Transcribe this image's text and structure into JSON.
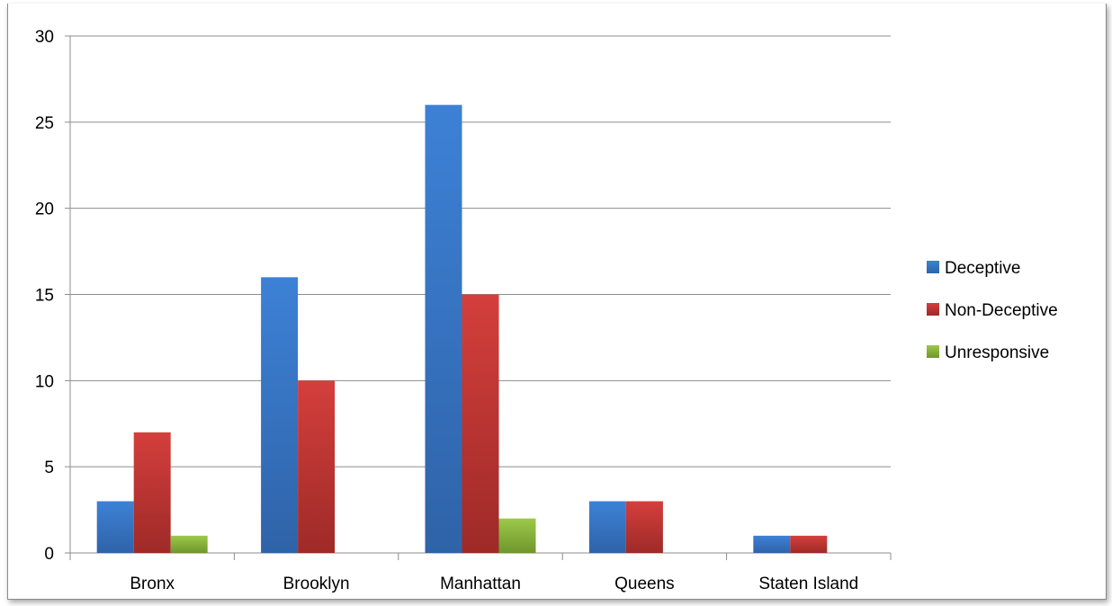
{
  "chart_data": {
    "type": "bar",
    "categories": [
      "Bronx",
      "Brooklyn",
      "Manhattan",
      "Queens",
      "Staten Island"
    ],
    "series": [
      {
        "name": "Deceptive",
        "values": [
          3,
          16,
          26,
          3,
          1
        ],
        "color": "#3f7fd0"
      },
      {
        "name": "Non-Deceptive",
        "values": [
          7,
          10,
          15,
          3,
          1
        ],
        "color": "#c93a38"
      },
      {
        "name": "Unresponsive",
        "values": [
          1,
          0,
          2,
          0,
          0
        ],
        "color": "#8dba3a"
      }
    ],
    "ylim": [
      0,
      30
    ],
    "yticks": [
      0,
      5,
      10,
      15,
      20,
      25,
      30
    ],
    "grid": true,
    "legend_position": "right"
  }
}
